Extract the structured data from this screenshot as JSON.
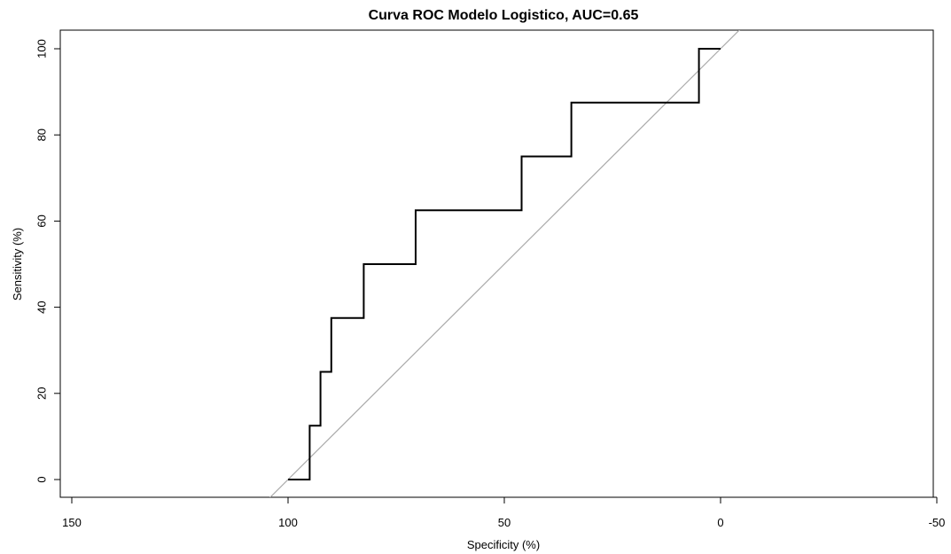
{
  "chart_data": {
    "type": "line",
    "title": "Curva ROC Modelo Logistico, AUC=0.65",
    "xlabel": "Specificity (%)",
    "ylabel": "Sensitivity (%)",
    "xlim": [
      150,
      -50
    ],
    "ylim": [
      0,
      100
    ],
    "x_reversed": true,
    "xticks": [
      150,
      100,
      50,
      0,
      -50
    ],
    "yticks": [
      0,
      20,
      40,
      60,
      80,
      100
    ],
    "grid": false,
    "legend": "none",
    "series": [
      {
        "line_color": "#000000",
        "points": [
          [
            100,
            0
          ],
          [
            95,
            0
          ],
          [
            95,
            12.5
          ],
          [
            92.5,
            12.5
          ],
          [
            92.5,
            25
          ],
          [
            90,
            25
          ],
          [
            90,
            37.5
          ],
          [
            82.5,
            37.5
          ],
          [
            82.5,
            50
          ],
          [
            70.5,
            50
          ],
          [
            70.5,
            62.5
          ],
          [
            46,
            62.5
          ],
          [
            46,
            75
          ],
          [
            34.5,
            75
          ],
          [
            34.5,
            87.5
          ],
          [
            5,
            87.5
          ],
          [
            5,
            100
          ],
          [
            0,
            100
          ]
        ]
      }
    ],
    "reference_line": {
      "color": "#aaaaaa",
      "points": [
        [
          100,
          0
        ],
        [
          0,
          100
        ]
      ]
    }
  }
}
